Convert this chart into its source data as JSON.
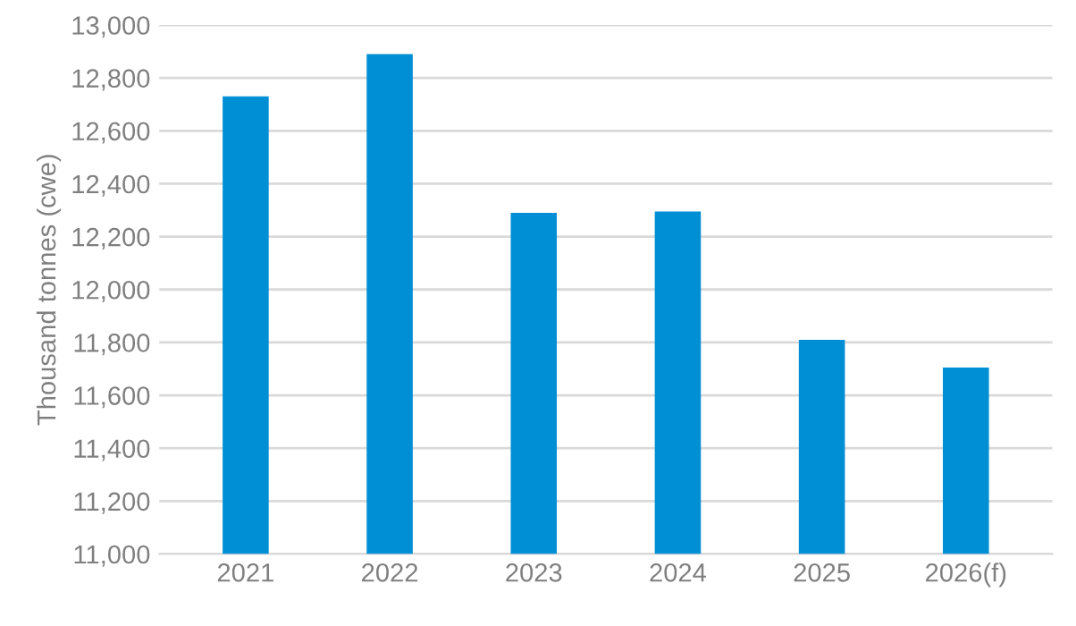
{
  "chart_data": {
    "type": "bar",
    "ylabel": "Thousand tonnes (cwe)",
    "categories": [
      "2021",
      "2022",
      "2023",
      "2024",
      "2025",
      "2026(f)"
    ],
    "values": [
      12730,
      12890,
      12290,
      12295,
      11810,
      11705
    ],
    "color": "#008fd5",
    "ylim": [
      11000,
      13000
    ],
    "yticks": [
      {
        "value": 11000,
        "label": "11,000"
      },
      {
        "value": 11200,
        "label": "11,200"
      },
      {
        "value": 11400,
        "label": "11,400"
      },
      {
        "value": 11600,
        "label": "11,600"
      },
      {
        "value": 11800,
        "label": "11,800"
      },
      {
        "value": 12000,
        "label": "12,000"
      },
      {
        "value": 12200,
        "label": "12,200"
      },
      {
        "value": 12400,
        "label": "12,400"
      },
      {
        "value": 12600,
        "label": "12,600"
      },
      {
        "value": 12800,
        "label": "12,800"
      },
      {
        "value": 13000,
        "label": "13,000"
      }
    ],
    "grid": "y"
  }
}
